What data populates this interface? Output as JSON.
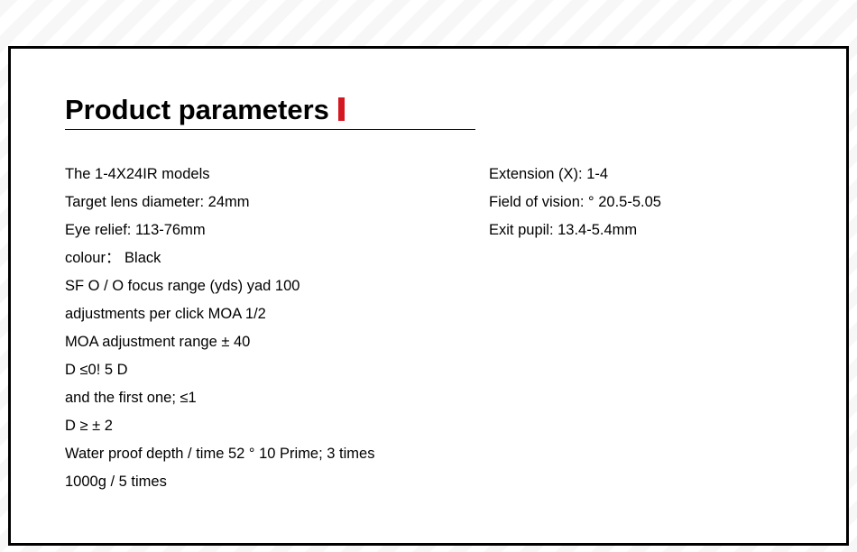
{
  "heading": "Product parameters",
  "accent_color": "#d31821",
  "left": [
    "The 1-4X24IR models",
    "Target lens diameter: 24mm",
    "Eye relief: 113-76mm",
    "colour：  Black",
    "SF O / O focus range (yds) yad 100",
    "adjustments per click MOA 1/2",
    "MOA adjustment range ± 40",
    "D ≤0! 5 D",
    "and the first one; ≤1",
    "D ≥ ± 2",
    "Water proof depth / time 52 ° 10 Prime; 3 times",
    "1000g / 5 times"
  ],
  "right": [
    "Extension (X): 1-4",
    "Field of vision: ° 20.5-5.05",
    "Exit pupil: 13.4-5.4mm"
  ]
}
